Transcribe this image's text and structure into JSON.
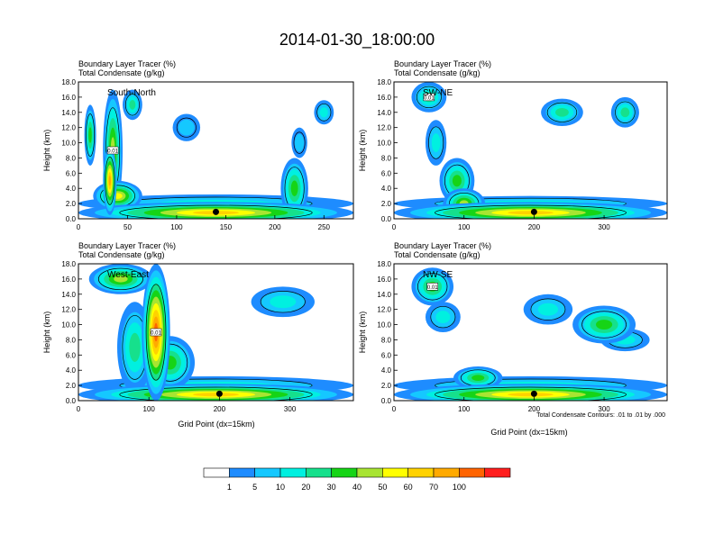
{
  "chart_data": {
    "type": "heatmap",
    "title": "2014-01-30_18:00:00",
    "variable_labels": [
      "Boundary Layer Tracer    (%)",
      "Total Condensate    (g/kg)"
    ],
    "ylabel": "Height (km)",
    "xlabel": "Grid Point (dx=15km)",
    "contour_note": "Total Condensate Contours: .01 to .01 by .000",
    "contour_label": "0.01",
    "y_ticks": [
      "0.0",
      "2.0",
      "4.0",
      "6.0",
      "8.0",
      "10.0",
      "12.0",
      "14.0",
      "16.0",
      "18.0"
    ],
    "ylim": [
      0,
      18
    ],
    "colorbar": {
      "levels": [
        "1",
        "5",
        "10",
        "20",
        "30",
        "40",
        "50",
        "60",
        "70",
        "100"
      ],
      "colors": [
        "#ffffff",
        "#1e8cff",
        "#15c8ff",
        "#00f0e0",
        "#16e08c",
        "#16d416",
        "#a8e432",
        "#ffff00",
        "#ffd200",
        "#ffaa00",
        "#ff6400",
        "#ff1e1e"
      ]
    },
    "panels": [
      {
        "name": "South-North",
        "xlim": [
          0,
          280
        ],
        "x_ticks": [
          "0",
          "50",
          "100",
          "150",
          "200",
          "250"
        ],
        "x_tick_values": [
          0,
          50,
          100,
          150,
          200,
          250
        ],
        "marker_x": 140,
        "blobs": [
          {
            "cx": 35,
            "cy": 9,
            "rx": 10,
            "ry": 8,
            "v": 40
          },
          {
            "cx": 32,
            "cy": 5,
            "rx": 7,
            "ry": 4.5,
            "v": 70
          },
          {
            "cx": 12,
            "cy": 11,
            "rx": 6,
            "ry": 4,
            "v": 30
          },
          {
            "cx": 55,
            "cy": 15,
            "rx": 10,
            "ry": 2,
            "v": 25
          },
          {
            "cx": 110,
            "cy": 12,
            "rx": 14,
            "ry": 1.8,
            "v": 6
          },
          {
            "cx": 220,
            "cy": 4,
            "rx": 14,
            "ry": 4,
            "v": 30
          },
          {
            "cx": 225,
            "cy": 10,
            "rx": 8,
            "ry": 2,
            "v": 8
          },
          {
            "cx": 250,
            "cy": 14,
            "rx": 10,
            "ry": 1.6,
            "v": 12
          },
          {
            "cx": 140,
            "cy": 0.8,
            "rx": 140,
            "ry": 1.4,
            "v": 60
          },
          {
            "cx": 140,
            "cy": 2,
            "rx": 140,
            "ry": 1.2,
            "v": 15
          },
          {
            "cx": 40,
            "cy": 3,
            "rx": 25,
            "ry": 2,
            "v": 50
          }
        ]
      },
      {
        "name": "SW-NE",
        "xlim": [
          0,
          390
        ],
        "x_ticks": [
          "0",
          "100",
          "200",
          "300"
        ],
        "x_tick_values": [
          0,
          100,
          200,
          300
        ],
        "marker_x": 200,
        "blobs": [
          {
            "cx": 50,
            "cy": 16,
            "rx": 25,
            "ry": 2,
            "v": 25
          },
          {
            "cx": 90,
            "cy": 5,
            "rx": 25,
            "ry": 3,
            "v": 35
          },
          {
            "cx": 60,
            "cy": 10,
            "rx": 15,
            "ry": 3,
            "v": 15
          },
          {
            "cx": 240,
            "cy": 14,
            "rx": 30,
            "ry": 1.8,
            "v": 22
          },
          {
            "cx": 330,
            "cy": 14,
            "rx": 20,
            "ry": 2,
            "v": 22
          },
          {
            "cx": 195,
            "cy": 0.8,
            "rx": 195,
            "ry": 1.4,
            "v": 60
          },
          {
            "cx": 195,
            "cy": 2,
            "rx": 195,
            "ry": 1,
            "v": 12
          },
          {
            "cx": 100,
            "cy": 2,
            "rx": 30,
            "ry": 2,
            "v": 40
          }
        ]
      },
      {
        "name": "West-East",
        "xlim": [
          0,
          390
        ],
        "x_ticks": [
          "0",
          "100",
          "200",
          "300"
        ],
        "x_tick_values": [
          0,
          100,
          200,
          300
        ],
        "marker_x": 200,
        "blobs": [
          {
            "cx": 110,
            "cy": 9,
            "rx": 20,
            "ry": 9,
            "v": 100
          },
          {
            "cx": 60,
            "cy": 16,
            "rx": 45,
            "ry": 2,
            "v": 45
          },
          {
            "cx": 80,
            "cy": 7,
            "rx": 25,
            "ry": 6,
            "v": 25
          },
          {
            "cx": 130,
            "cy": 5,
            "rx": 35,
            "ry": 3.5,
            "v": 35
          },
          {
            "cx": 290,
            "cy": 13,
            "rx": 45,
            "ry": 2,
            "v": 18
          },
          {
            "cx": 195,
            "cy": 0.8,
            "rx": 195,
            "ry": 1.4,
            "v": 60
          },
          {
            "cx": 195,
            "cy": 2,
            "rx": 195,
            "ry": 1.2,
            "v": 15
          }
        ]
      },
      {
        "name": "NW-SE",
        "xlim": [
          0,
          390
        ],
        "x_ticks": [
          "0",
          "100",
          "200",
          "300"
        ],
        "x_tick_values": [
          0,
          100,
          200,
          300
        ],
        "marker_x": 200,
        "blobs": [
          {
            "cx": 55,
            "cy": 15,
            "rx": 30,
            "ry": 2.5,
            "v": 35
          },
          {
            "cx": 70,
            "cy": 11,
            "rx": 25,
            "ry": 2,
            "v": 12
          },
          {
            "cx": 220,
            "cy": 12,
            "rx": 35,
            "ry": 2,
            "v": 12
          },
          {
            "cx": 300,
            "cy": 10,
            "rx": 45,
            "ry": 2.5,
            "v": 30
          },
          {
            "cx": 330,
            "cy": 8,
            "rx": 35,
            "ry": 1.5,
            "v": 18
          },
          {
            "cx": 195,
            "cy": 0.8,
            "rx": 195,
            "ry": 1.4,
            "v": 60
          },
          {
            "cx": 195,
            "cy": 2,
            "rx": 195,
            "ry": 1.2,
            "v": 15
          },
          {
            "cx": 120,
            "cy": 3,
            "rx": 35,
            "ry": 1.5,
            "v": 30
          }
        ]
      }
    ]
  }
}
